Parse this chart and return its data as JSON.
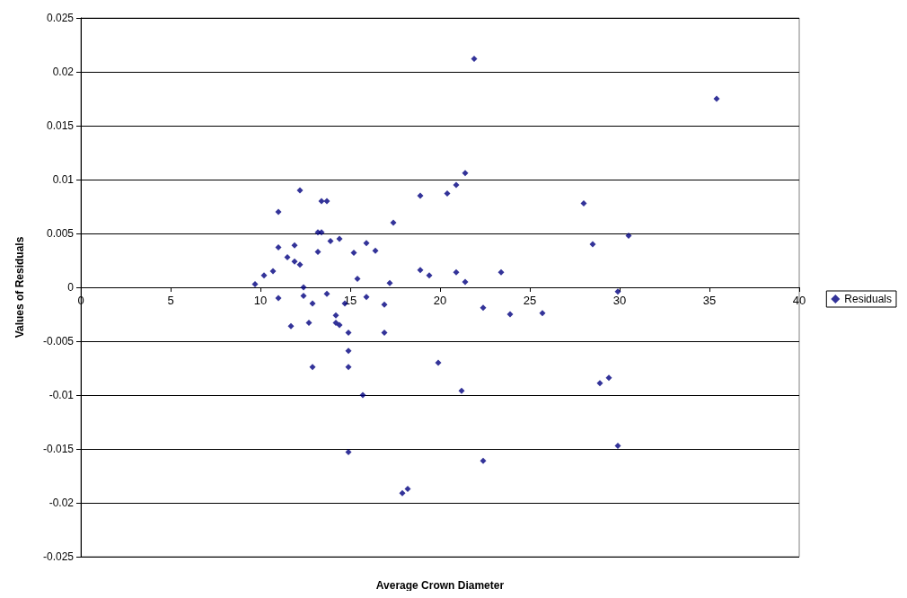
{
  "chart_data": {
    "type": "scatter",
    "xlabel": "Average Crown Diameter",
    "ylabel": "Values of Residuals",
    "xlim": [
      0,
      40
    ],
    "xticks": [
      0,
      5,
      10,
      15,
      20,
      25,
      30,
      35,
      40
    ],
    "ylim": [
      -0.025,
      0.025
    ],
    "yticks": [
      -0.025,
      -0.02,
      -0.015,
      -0.01,
      -0.005,
      0,
      0.005,
      0.01,
      0.015,
      0.02,
      0.025
    ],
    "grid": "y",
    "legend": "right",
    "marker": "diamond",
    "series": [
      {
        "name": "Residuals",
        "color": "#000080",
        "x": [
          9.7,
          10.2,
          10.7,
          11.0,
          11.0,
          11.0,
          11.5,
          11.7,
          11.9,
          11.9,
          12.2,
          12.2,
          12.4,
          12.4,
          12.7,
          12.9,
          12.9,
          13.2,
          13.2,
          13.4,
          13.4,
          13.7,
          13.7,
          13.9,
          14.2,
          14.2,
          14.4,
          14.4,
          14.7,
          14.9,
          14.9,
          14.9,
          14.9,
          15.2,
          15.4,
          15.7,
          15.9,
          15.9,
          16.4,
          16.9,
          16.9,
          17.2,
          17.4,
          17.9,
          18.2,
          18.9,
          18.9,
          19.4,
          19.9,
          20.4,
          20.9,
          20.9,
          21.2,
          21.4,
          21.4,
          21.9,
          22.4,
          22.4,
          23.4,
          23.9,
          25.7,
          28.0,
          28.5,
          28.9,
          29.4,
          29.9,
          29.9,
          30.5,
          35.4
        ],
        "values": [
          0.0003,
          0.0011,
          0.0015,
          0.007,
          0.0037,
          -0.001,
          0.0028,
          -0.0036,
          0.0039,
          0.0024,
          0.0021,
          0.009,
          0,
          -0.0008,
          -0.0033,
          -0.0074,
          -0.0015,
          0.0033,
          0.0051,
          0.008,
          0.0051,
          0.008,
          -0.0006,
          0.0043,
          -0.0026,
          -0.0033,
          0.0045,
          -0.0035,
          -0.0015,
          -0.0042,
          -0.0059,
          -0.0074,
          -0.0153,
          0.0032,
          0.0008,
          -0.01,
          0.0041,
          -0.0009,
          0.0034,
          -0.0016,
          -0.0042,
          0.0004,
          0.006,
          -0.0191,
          -0.0187,
          0.0085,
          0.0016,
          0.0011,
          -0.007,
          0.0087,
          0.0095,
          0.0014,
          -0.0096,
          0.0106,
          0.0005,
          0.0212,
          -0.0019,
          -0.0161,
          0.0014,
          -0.0025,
          -0.0024,
          0.0078,
          0.004,
          -0.0089,
          -0.0084,
          -0.0004,
          -0.0147,
          0.0048,
          0.0175
        ]
      }
    ]
  }
}
